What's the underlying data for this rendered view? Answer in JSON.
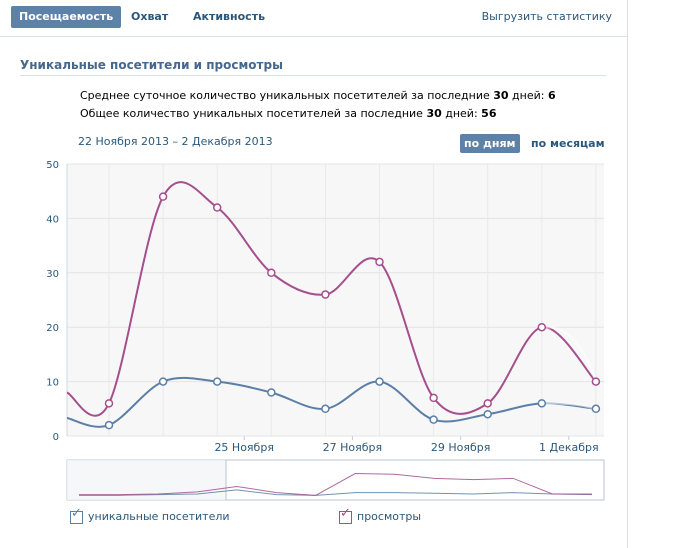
{
  "tabs": [
    {
      "label": "Посещаемость",
      "active": true
    },
    {
      "label": "Охват",
      "active": false
    },
    {
      "label": "Активность",
      "active": false
    }
  ],
  "export_label": "Выгрузить статистику",
  "section_title": "Уникальные посетители и просмотры",
  "stats": {
    "avg": {
      "text": "Среднее суточное количество уникальных посетителей за последние ",
      "days": "30",
      "suffix": " дней:",
      "value": "6"
    },
    "total": {
      "text": "Общее количество уникальных посетителей за последние ",
      "days": "30",
      "suffix": " дней:",
      "value": "56"
    }
  },
  "date_range": "22 Ноября 2013 – 2 Декабря 2013",
  "period_buttons": {
    "by_day": "по дням",
    "by_month": "по месяцам",
    "active": "by_day"
  },
  "chart_data": {
    "type": "line",
    "ylim": [
      0,
      50
    ],
    "yticks": [
      0,
      10,
      20,
      30,
      40,
      50
    ],
    "x_day_labels": [
      "25 Ноября",
      "27 Ноября",
      "29 Ноября",
      "1 Декабря"
    ],
    "x_day_label_index": [
      3,
      5,
      7,
      9
    ],
    "series": [
      {
        "name": "уникальные посетители",
        "color": "#5b7fa6",
        "values": [
          2,
          10,
          10,
          8,
          5,
          10,
          3,
          4,
          6,
          5
        ]
      },
      {
        "name": "просмотры",
        "color": "#a54f8e",
        "values": [
          6,
          44,
          42,
          30,
          26,
          32,
          7,
          6,
          20,
          10
        ]
      }
    ]
  },
  "legend": [
    {
      "label": "уникальные посетители",
      "color": "#5b7fa6",
      "checked": true
    },
    {
      "label": "просмотры",
      "color": "#a54f8e",
      "checked": true
    }
  ]
}
